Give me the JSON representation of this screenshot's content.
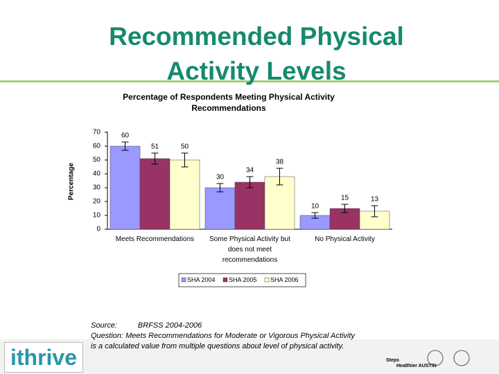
{
  "header": {
    "title": "Recommended Physical Activity Levels"
  },
  "chart_data": {
    "type": "bar",
    "title": "Percentage of Respondents Meeting Physical Activity Recommendations",
    "y_label": "Percentage",
    "categories": [
      "Meets Recommendations",
      "Some Physical Activity but does not meet recommendations",
      "No Physical Activity"
    ],
    "series": [
      {
        "name": "SHA 2004",
        "color": "#9999ff",
        "values": [
          60,
          30,
          10
        ],
        "errors": [
          3,
          3,
          2
        ]
      },
      {
        "name": "SHA 2005",
        "color": "#993366",
        "values": [
          51,
          34,
          15
        ],
        "errors": [
          4,
          4,
          3
        ]
      },
      {
        "name": "SHA 2006",
        "color": "#ffffcc",
        "values": [
          50,
          38,
          13
        ],
        "errors": [
          5,
          6,
          4
        ]
      }
    ],
    "ylim": [
      0,
      70
    ],
    "yticks": [
      0,
      10,
      20,
      30,
      40,
      50,
      60,
      70
    ],
    "grid": false,
    "legend": "bottom"
  },
  "footer": {
    "source_label": "Source:",
    "source": "BRFSS 2004-2006",
    "question": "Question: Meets Recommendations for Moderate or Vigorous Physical Activity is a calculated value from multiple questions about level of physical activity.",
    "logo": "ithrive",
    "partner_logo_1": "Steps",
    "partner_logo_2": "Healthier AUSTIN"
  }
}
